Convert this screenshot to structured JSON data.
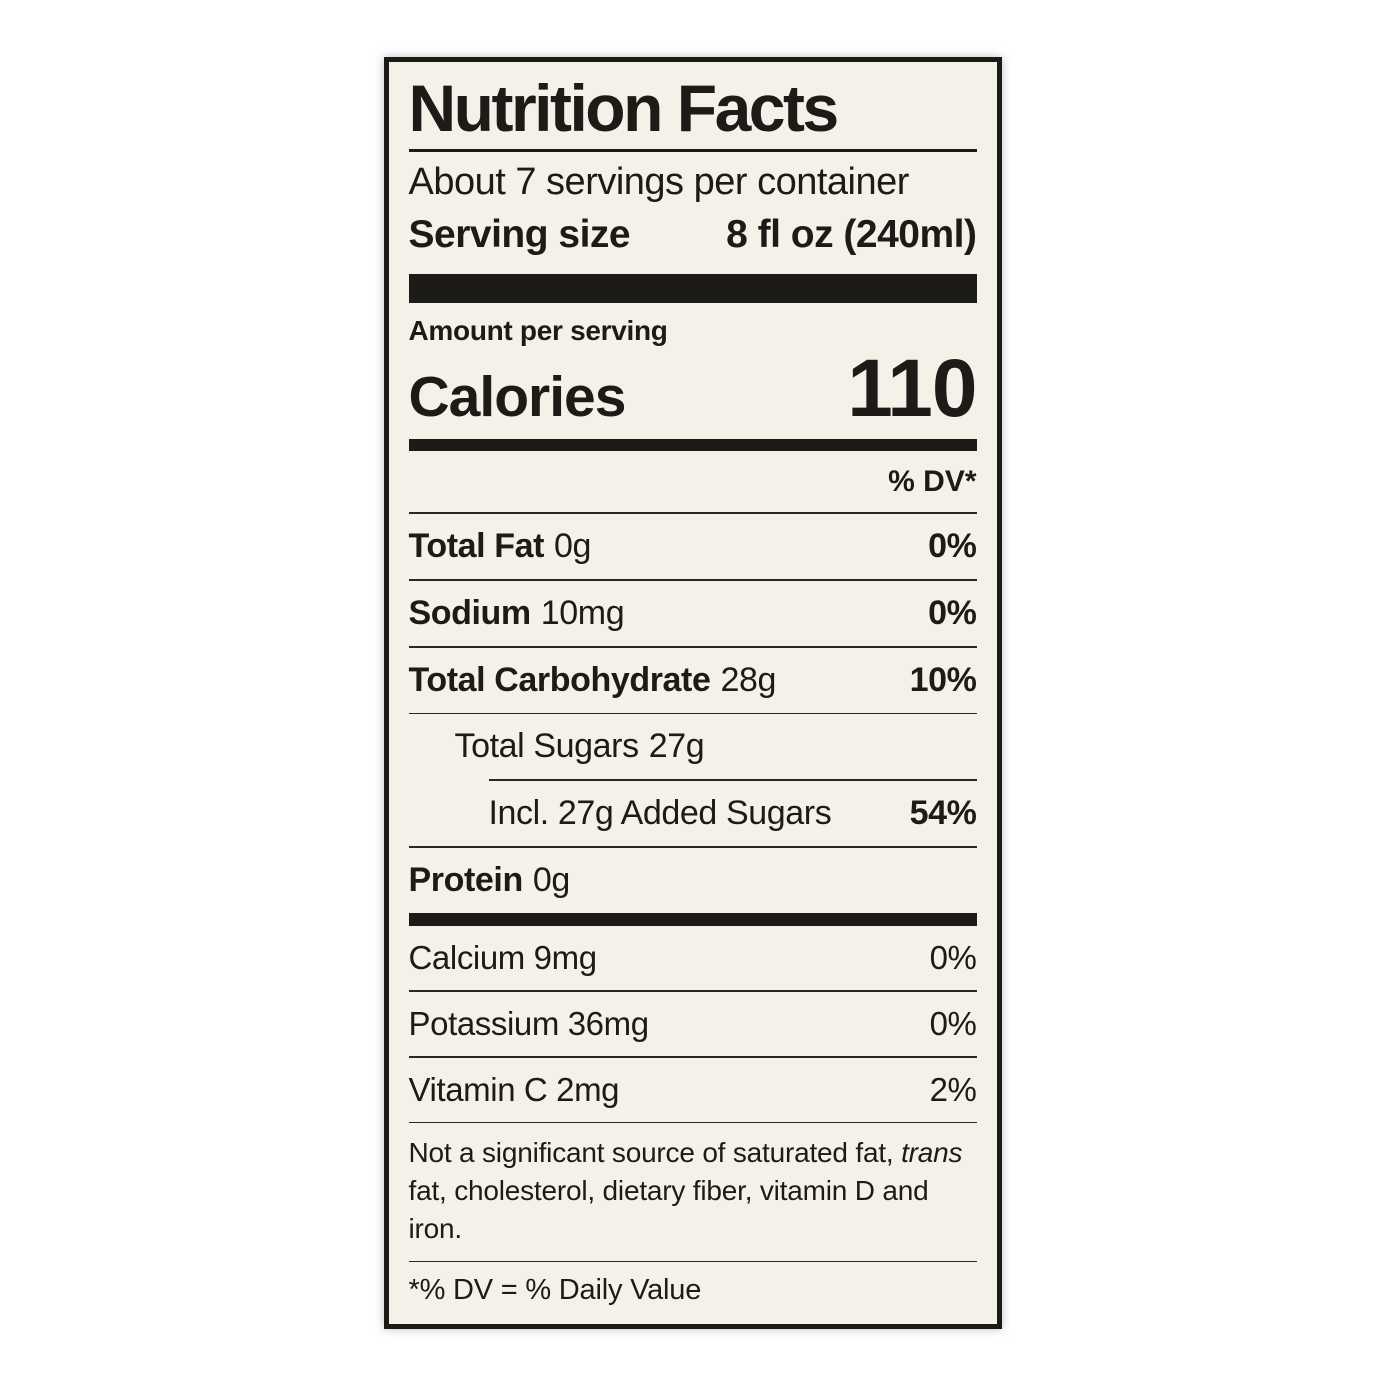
{
  "label": {
    "colors": {
      "ink": "#1d1b17",
      "paper": "#f4f1e8"
    },
    "title": "Nutrition Facts",
    "servings_per_container": "About 7 servings per container",
    "serving_size": {
      "label": "Serving size",
      "value": "8 fl oz (240ml)"
    },
    "amount_per_serving": "Amount per serving",
    "calories": {
      "label": "Calories",
      "value": "110"
    },
    "dv_header": "% DV*",
    "nutrients": [
      {
        "name": "Total Fat",
        "amount": "0g",
        "dv": "0%"
      },
      {
        "name": "Sodium",
        "amount": "10mg",
        "dv": "0%"
      },
      {
        "name": "Total Carbohydrate",
        "amount": "28g",
        "dv": "10%"
      },
      {
        "name": "Total Sugars",
        "amount": "27g",
        "dv": ""
      },
      {
        "name": "Incl. 27g Added Sugars",
        "amount": "",
        "dv": "54%"
      },
      {
        "name": "Protein",
        "amount": "0g",
        "dv": ""
      }
    ],
    "micronutrients": [
      {
        "name": "Calcium 9mg",
        "dv": "0%"
      },
      {
        "name": "Potassium 36mg",
        "dv": "0%"
      },
      {
        "name": "Vitamin C 2mg",
        "dv": "2%"
      }
    ],
    "footnote": {
      "before_italic": "Not a significant source of saturated fat, ",
      "italic": "trans",
      "after_italic": " fat, cholesterol, dietary fiber, vitamin D and iron."
    },
    "dv_definition": "*% DV = % Daily Value"
  }
}
